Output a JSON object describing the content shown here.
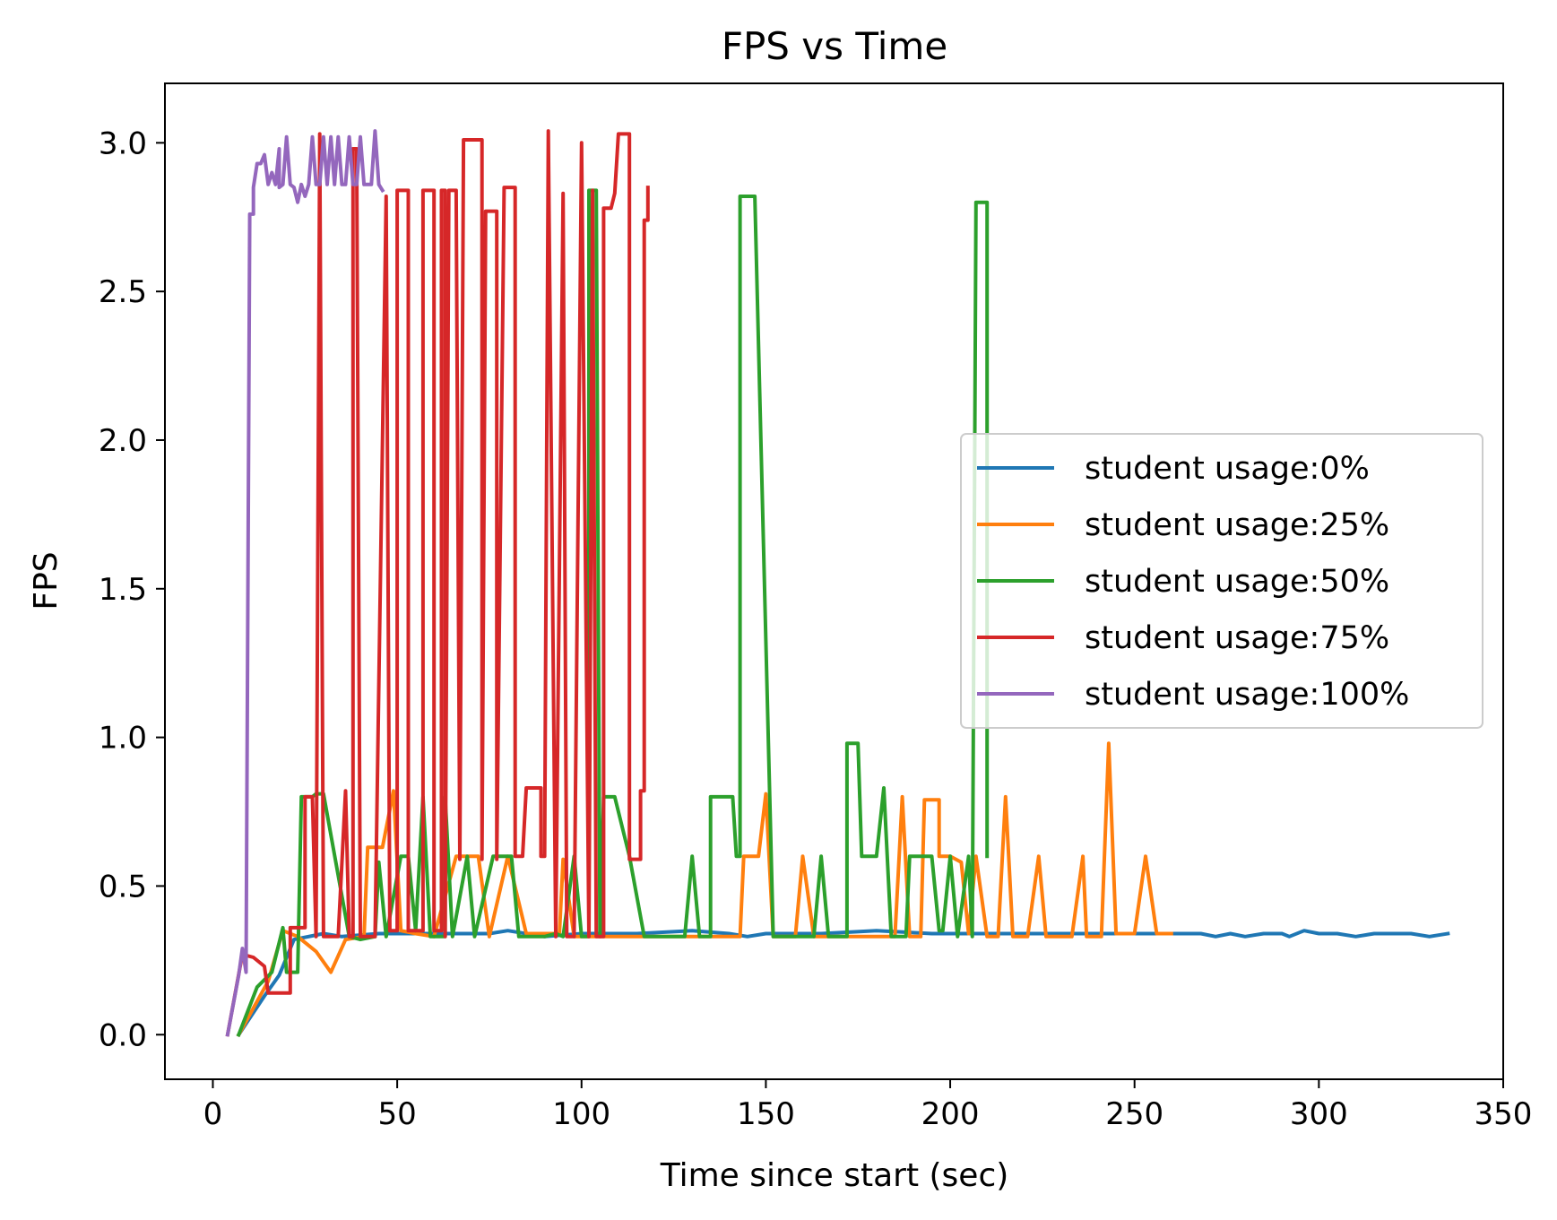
{
  "chart_data": {
    "type": "line",
    "title": "FPS vs Time",
    "xlabel": "Time since start (sec)",
    "ylabel": "FPS",
    "xlim": [
      -13,
      350
    ],
    "ylim": [
      -0.15,
      3.2
    ],
    "xticks": [
      0,
      50,
      100,
      150,
      200,
      250,
      300,
      350
    ],
    "xtick_labels": [
      "0",
      "50",
      "100",
      "150",
      "200",
      "250",
      "300",
      "350"
    ],
    "yticks": [
      0.0,
      0.5,
      1.0,
      1.5,
      2.0,
      2.5,
      3.0
    ],
    "ytick_labels": [
      "0.0",
      "0.5",
      "1.0",
      "1.5",
      "2.0",
      "2.5",
      "3.0"
    ],
    "grid": false,
    "legend_position": "center-right",
    "series": [
      {
        "name": "student usage:0%",
        "color": "#1f77b4",
        "points": [
          [
            7,
            0.0
          ],
          [
            14,
            0.13
          ],
          [
            18,
            0.2
          ],
          [
            22,
            0.32
          ],
          [
            30,
            0.34
          ],
          [
            35,
            0.33
          ],
          [
            45,
            0.34
          ],
          [
            60,
            0.34
          ],
          [
            75,
            0.34
          ],
          [
            80,
            0.35
          ],
          [
            90,
            0.33
          ],
          [
            100,
            0.34
          ],
          [
            115,
            0.34
          ],
          [
            130,
            0.35
          ],
          [
            140,
            0.34
          ],
          [
            145,
            0.33
          ],
          [
            150,
            0.34
          ],
          [
            165,
            0.34
          ],
          [
            180,
            0.35
          ],
          [
            195,
            0.34
          ],
          [
            210,
            0.34
          ],
          [
            220,
            0.34
          ],
          [
            235,
            0.34
          ],
          [
            250,
            0.34
          ],
          [
            260,
            0.34
          ],
          [
            268,
            0.34
          ],
          [
            272,
            0.33
          ],
          [
            276,
            0.34
          ],
          [
            280,
            0.33
          ],
          [
            285,
            0.34
          ],
          [
            290,
            0.34
          ],
          [
            292,
            0.33
          ],
          [
            296,
            0.35
          ],
          [
            300,
            0.34
          ],
          [
            305,
            0.34
          ],
          [
            310,
            0.33
          ],
          [
            315,
            0.34
          ],
          [
            320,
            0.34
          ],
          [
            325,
            0.34
          ],
          [
            330,
            0.33
          ],
          [
            335,
            0.34
          ]
        ]
      },
      {
        "name": "student usage:25%",
        "color": "#ff7f0e",
        "points": [
          [
            7,
            0.0
          ],
          [
            15,
            0.18
          ],
          [
            19,
            0.35
          ],
          [
            23,
            0.33
          ],
          [
            28,
            0.28
          ],
          [
            32,
            0.21
          ],
          [
            36,
            0.32
          ],
          [
            41,
            0.33
          ],
          [
            42,
            0.63
          ],
          [
            46,
            0.63
          ],
          [
            49,
            0.82
          ],
          [
            51,
            0.35
          ],
          [
            55,
            0.34
          ],
          [
            60,
            0.33
          ],
          [
            66,
            0.6
          ],
          [
            72,
            0.6
          ],
          [
            75,
            0.33
          ],
          [
            80,
            0.6
          ],
          [
            85,
            0.34
          ],
          [
            94,
            0.34
          ],
          [
            95,
            0.59
          ],
          [
            98,
            0.33
          ],
          [
            106,
            0.33
          ],
          [
            115,
            0.33
          ],
          [
            125,
            0.33
          ],
          [
            135,
            0.33
          ],
          [
            143,
            0.33
          ],
          [
            144,
            0.6
          ],
          [
            148,
            0.6
          ],
          [
            150,
            0.81
          ],
          [
            152,
            0.33
          ],
          [
            158,
            0.33
          ],
          [
            160,
            0.6
          ],
          [
            163,
            0.33
          ],
          [
            170,
            0.33
          ],
          [
            180,
            0.33
          ],
          [
            185,
            0.33
          ],
          [
            187,
            0.8
          ],
          [
            189,
            0.33
          ],
          [
            192,
            0.33
          ],
          [
            193,
            0.79
          ],
          [
            197,
            0.79
          ],
          [
            197,
            0.6
          ],
          [
            200,
            0.6
          ],
          [
            203,
            0.58
          ],
          [
            205,
            0.34
          ],
          [
            207,
            0.6
          ],
          [
            210,
            0.33
          ],
          [
            213,
            0.33
          ],
          [
            215,
            0.8
          ],
          [
            217,
            0.33
          ],
          [
            221,
            0.33
          ],
          [
            224,
            0.6
          ],
          [
            226,
            0.33
          ],
          [
            233,
            0.33
          ],
          [
            236,
            0.6
          ],
          [
            237,
            0.33
          ],
          [
            241,
            0.33
          ],
          [
            243,
            0.98
          ],
          [
            245,
            0.34
          ],
          [
            250,
            0.34
          ],
          [
            253,
            0.6
          ],
          [
            256,
            0.34
          ],
          [
            260,
            0.34
          ]
        ]
      },
      {
        "name": "student usage:50%",
        "color": "#2ca02c",
        "points": [
          [
            7,
            0.0
          ],
          [
            12,
            0.16
          ],
          [
            16,
            0.21
          ],
          [
            19,
            0.36
          ],
          [
            20,
            0.21
          ],
          [
            23,
            0.21
          ],
          [
            24,
            0.8
          ],
          [
            27,
            0.8
          ],
          [
            28,
            0.81
          ],
          [
            30,
            0.81
          ],
          [
            37,
            0.33
          ],
          [
            40,
            0.32
          ],
          [
            44,
            0.33
          ],
          [
            45,
            0.58
          ],
          [
            47,
            0.33
          ],
          [
            51,
            0.6
          ],
          [
            53,
            0.6
          ],
          [
            55,
            0.35
          ],
          [
            57,
            0.8
          ],
          [
            59,
            0.33
          ],
          [
            63,
            0.33
          ],
          [
            63,
            0.8
          ],
          [
            65,
            0.33
          ],
          [
            69,
            0.6
          ],
          [
            71,
            0.33
          ],
          [
            76,
            0.6
          ],
          [
            81,
            0.6
          ],
          [
            83,
            0.33
          ],
          [
            90,
            0.33
          ],
          [
            93,
            0.34
          ],
          [
            95,
            0.33
          ],
          [
            98,
            0.6
          ],
          [
            100,
            0.33
          ],
          [
            102,
            0.33
          ],
          [
            102,
            2.84
          ],
          [
            104,
            2.84
          ],
          [
            105,
            0.33
          ],
          [
            106,
            0.8
          ],
          [
            109,
            0.8
          ],
          [
            113,
            0.6
          ],
          [
            117,
            0.33
          ],
          [
            128,
            0.33
          ],
          [
            130,
            0.6
          ],
          [
            132,
            0.33
          ],
          [
            135,
            0.33
          ],
          [
            135,
            0.8
          ],
          [
            139,
            0.8
          ],
          [
            141,
            0.8
          ],
          [
            142,
            0.6
          ],
          [
            143,
            0.6
          ],
          [
            143,
            2.82
          ],
          [
            147,
            2.82
          ],
          [
            152,
            0.33
          ],
          [
            158,
            0.33
          ],
          [
            161,
            0.33
          ],
          [
            163,
            0.33
          ],
          [
            165,
            0.6
          ],
          [
            167,
            0.33
          ],
          [
            172,
            0.33
          ],
          [
            172,
            0.98
          ],
          [
            175,
            0.98
          ],
          [
            176,
            0.6
          ],
          [
            180,
            0.6
          ],
          [
            182,
            0.83
          ],
          [
            184,
            0.33
          ],
          [
            188,
            0.33
          ],
          [
            189,
            0.6
          ],
          [
            195,
            0.6
          ],
          [
            197,
            0.35
          ],
          [
            198,
            0.35
          ],
          [
            200,
            0.6
          ],
          [
            202,
            0.33
          ],
          [
            205,
            0.6
          ],
          [
            206,
            0.33
          ],
          [
            207,
            2.8
          ],
          [
            210,
            2.8
          ],
          [
            210,
            0.6
          ]
        ]
      },
      {
        "name": "student usage:75%",
        "color": "#d62728",
        "points": [
          [
            4,
            0.0
          ],
          [
            8,
            0.27
          ],
          [
            11,
            0.26
          ],
          [
            14,
            0.23
          ],
          [
            15,
            0.14
          ],
          [
            17,
            0.14
          ],
          [
            21,
            0.14
          ],
          [
            21,
            0.36
          ],
          [
            25,
            0.36
          ],
          [
            25,
            0.8
          ],
          [
            27,
            0.8
          ],
          [
            28,
            0.33
          ],
          [
            29,
            3.03
          ],
          [
            30,
            0.33
          ],
          [
            34,
            0.33
          ],
          [
            36,
            0.82
          ],
          [
            37,
            0.33
          ],
          [
            38,
            0.33
          ],
          [
            38,
            2.98
          ],
          [
            39,
            2.98
          ],
          [
            40,
            0.33
          ],
          [
            44,
            0.33
          ],
          [
            47,
            2.82
          ],
          [
            48,
            0.35
          ],
          [
            50,
            0.35
          ],
          [
            50,
            2.84
          ],
          [
            53,
            2.84
          ],
          [
            53,
            0.35
          ],
          [
            57,
            0.35
          ],
          [
            57,
            2.84
          ],
          [
            60,
            2.84
          ],
          [
            60,
            0.35
          ],
          [
            62,
            0.35
          ],
          [
            62,
            2.84
          ],
          [
            63,
            2.84
          ],
          [
            63,
            0.33
          ],
          [
            64,
            2.84
          ],
          [
            66,
            2.84
          ],
          [
            67,
            0.59
          ],
          [
            68,
            3.01
          ],
          [
            73,
            3.01
          ],
          [
            73,
            0.59
          ],
          [
            74,
            2.77
          ],
          [
            77,
            2.77
          ],
          [
            77,
            0.59
          ],
          [
            79,
            2.85
          ],
          [
            82,
            2.85
          ],
          [
            82,
            0.6
          ],
          [
            84,
            0.6
          ],
          [
            85,
            0.83
          ],
          [
            89,
            0.83
          ],
          [
            89,
            0.6
          ],
          [
            90,
            0.6
          ],
          [
            91,
            3.04
          ],
          [
            93,
            0.33
          ],
          [
            95,
            2.83
          ],
          [
            96,
            0.33
          ],
          [
            98,
            0.33
          ],
          [
            100,
            3.0
          ],
          [
            102,
            0.33
          ],
          [
            103,
            2.84
          ],
          [
            104,
            0.33
          ],
          [
            106,
            0.33
          ],
          [
            106,
            2.78
          ],
          [
            108,
            2.78
          ],
          [
            109,
            2.83
          ],
          [
            110,
            3.03
          ],
          [
            113,
            3.03
          ],
          [
            113,
            0.59
          ],
          [
            116,
            0.59
          ],
          [
            116,
            0.82
          ],
          [
            117,
            0.82
          ],
          [
            117,
            2.74
          ],
          [
            118,
            2.74
          ],
          [
            118,
            2.85
          ]
        ]
      },
      {
        "name": "student usage:100%",
        "color": "#9467bd",
        "points": [
          [
            4,
            0.0
          ],
          [
            7,
            0.2
          ],
          [
            8,
            0.29
          ],
          [
            9,
            0.21
          ],
          [
            10,
            2.76
          ],
          [
            11,
            2.76
          ],
          [
            11,
            2.85
          ],
          [
            12,
            2.93
          ],
          [
            13,
            2.93
          ],
          [
            14,
            2.96
          ],
          [
            15,
            2.86
          ],
          [
            16,
            2.9
          ],
          [
            17,
            2.86
          ],
          [
            18,
            2.98
          ],
          [
            18,
            2.85
          ],
          [
            19,
            2.86
          ],
          [
            20,
            3.02
          ],
          [
            21,
            2.86
          ],
          [
            22,
            2.85
          ],
          [
            23,
            2.8
          ],
          [
            24,
            2.86
          ],
          [
            25,
            2.82
          ],
          [
            26,
            2.86
          ],
          [
            27,
            3.02
          ],
          [
            28,
            2.86
          ],
          [
            29,
            2.86
          ],
          [
            30,
            3.02
          ],
          [
            31,
            2.86
          ],
          [
            32,
            3.02
          ],
          [
            33,
            2.86
          ],
          [
            34,
            3.02
          ],
          [
            35,
            2.86
          ],
          [
            36,
            2.86
          ],
          [
            37,
            3.02
          ],
          [
            38,
            2.86
          ],
          [
            39,
            2.86
          ],
          [
            40,
            3.02
          ],
          [
            41,
            2.86
          ],
          [
            42,
            2.86
          ],
          [
            43,
            2.86
          ],
          [
            44,
            3.04
          ],
          [
            45,
            2.86
          ],
          [
            46,
            2.84
          ]
        ]
      }
    ]
  }
}
